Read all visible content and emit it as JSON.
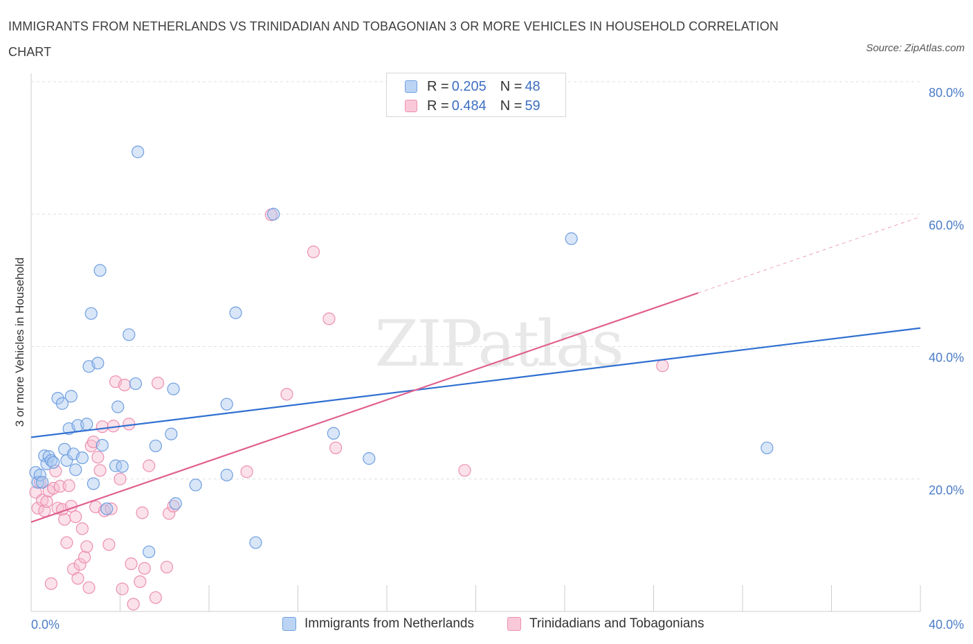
{
  "title": "IMMIGRANTS FROM NETHERLANDS VS TRINIDADIAN AND TOBAGONIAN 3 OR MORE VEHICLES IN HOUSEHOLD CORRELATION CHART",
  "source": "Source: ZipAtlas.com",
  "watermark": "ZIPatlas",
  "colors": {
    "blue_fill": "#a9c7ef",
    "blue_stroke": "#6f9ee0",
    "blue_line": "#2f6fd1",
    "pink_fill": "#f6bcd0",
    "pink_stroke": "#ec8fb0",
    "pink_line": "#e0608f",
    "tick_text": "#4a7cc7",
    "grid": "#dddddd"
  },
  "legend": {
    "items": [
      {
        "r_label": "R =",
        "r_value": "0.205",
        "n_label": "N =",
        "n_value": "48"
      },
      {
        "r_label": "R =",
        "r_value": "0.484",
        "n_label": "N =",
        "n_value": "59"
      }
    ]
  },
  "chart_data": {
    "type": "scatter",
    "title": "IMMIGRANTS FROM NETHERLANDS VS TRINIDADIAN AND TOBAGONIAN 3 OR MORE VEHICLES IN HOUSEHOLD CORRELATION CHART",
    "xlabel": "",
    "ylabel": "3 or more Vehicles in Household",
    "xlim": [
      0,
      40
    ],
    "ylim": [
      0,
      80
    ],
    "x_tick_labels": [
      "0.0%",
      "40.0%"
    ],
    "y_ticks": [
      20,
      40,
      60,
      80
    ],
    "y_tick_labels": [
      "20.0%",
      "40.0%",
      "60.0%",
      "80.0%"
    ],
    "grid": true,
    "legend_position": "bottom",
    "series": [
      {
        "name": "Immigrants from Netherlands",
        "R": 0.205,
        "N": 48,
        "trend": {
          "x": [
            0,
            40
          ],
          "y": [
            26.3,
            42.8
          ],
          "dashed_from": null
        },
        "points": [
          [
            0.2,
            21.0
          ],
          [
            0.3,
            19.5
          ],
          [
            0.4,
            20.6
          ],
          [
            0.5,
            19.5
          ],
          [
            0.6,
            23.5
          ],
          [
            0.7,
            22.3
          ],
          [
            0.8,
            23.4
          ],
          [
            0.9,
            22.8
          ],
          [
            1.0,
            22.5
          ],
          [
            1.2,
            32.2
          ],
          [
            1.4,
            31.4
          ],
          [
            1.5,
            24.5
          ],
          [
            1.6,
            22.8
          ],
          [
            1.8,
            32.5
          ],
          [
            1.9,
            23.8
          ],
          [
            1.7,
            27.6
          ],
          [
            2.1,
            28.1
          ],
          [
            2.0,
            21.4
          ],
          [
            2.3,
            23.2
          ],
          [
            2.5,
            28.3
          ],
          [
            2.6,
            37.0
          ],
          [
            2.7,
            45.0
          ],
          [
            2.8,
            19.3
          ],
          [
            3.0,
            37.5
          ],
          [
            3.1,
            51.5
          ],
          [
            3.2,
            25.1
          ],
          [
            3.4,
            15.5
          ],
          [
            3.8,
            22.0
          ],
          [
            3.9,
            30.9
          ],
          [
            4.1,
            21.9
          ],
          [
            4.4,
            41.8
          ],
          [
            4.7,
            34.4
          ],
          [
            4.8,
            69.4
          ],
          [
            5.3,
            9.0
          ],
          [
            5.6,
            25.0
          ],
          [
            6.3,
            26.8
          ],
          [
            6.4,
            33.6
          ],
          [
            6.5,
            16.3
          ],
          [
            7.4,
            19.1
          ],
          [
            8.8,
            31.3
          ],
          [
            8.8,
            20.6
          ],
          [
            9.2,
            45.1
          ],
          [
            10.1,
            10.4
          ],
          [
            10.9,
            60.0
          ],
          [
            13.6,
            26.9
          ],
          [
            15.2,
            23.1
          ],
          [
            24.3,
            56.3
          ],
          [
            33.1,
            24.7
          ]
        ]
      },
      {
        "name": "Trinidadians and Tobagonians",
        "R": 0.484,
        "N": 59,
        "trend": {
          "x": [
            0,
            30
          ],
          "y": [
            13.5,
            48.1
          ],
          "dashed_to": {
            "x": 40,
            "y": 59.6
          }
        },
        "points": [
          [
            0.2,
            18.0
          ],
          [
            0.3,
            15.6
          ],
          [
            0.4,
            19.5
          ],
          [
            0.5,
            16.8
          ],
          [
            0.6,
            15.2
          ],
          [
            0.7,
            16.6
          ],
          [
            0.8,
            18.2
          ],
          [
            0.9,
            4.2
          ],
          [
            1.0,
            18.6
          ],
          [
            1.1,
            21.2
          ],
          [
            1.2,
            15.6
          ],
          [
            1.3,
            18.9
          ],
          [
            1.4,
            15.4
          ],
          [
            1.5,
            13.9
          ],
          [
            1.6,
            10.4
          ],
          [
            1.7,
            19.0
          ],
          [
            1.8,
            15.9
          ],
          [
            1.9,
            6.4
          ],
          [
            2.0,
            14.3
          ],
          [
            2.1,
            5.0
          ],
          [
            2.2,
            7.1
          ],
          [
            2.3,
            12.5
          ],
          [
            2.4,
            8.2
          ],
          [
            2.5,
            9.8
          ],
          [
            2.6,
            3.6
          ],
          [
            2.7,
            25.0
          ],
          [
            2.8,
            25.6
          ],
          [
            2.9,
            15.8
          ],
          [
            3.0,
            23.3
          ],
          [
            3.1,
            21.3
          ],
          [
            3.2,
            27.9
          ],
          [
            3.3,
            15.2
          ],
          [
            3.5,
            10.1
          ],
          [
            3.6,
            15.5
          ],
          [
            3.7,
            28.0
          ],
          [
            3.8,
            34.7
          ],
          [
            4.0,
            20.0
          ],
          [
            4.1,
            3.4
          ],
          [
            4.2,
            34.2
          ],
          [
            4.4,
            28.3
          ],
          [
            4.5,
            7.2
          ],
          [
            4.6,
            1.1
          ],
          [
            4.9,
            4.5
          ],
          [
            5.0,
            14.9
          ],
          [
            5.1,
            6.5
          ],
          [
            5.3,
            22.0
          ],
          [
            5.6,
            2.1
          ],
          [
            5.7,
            34.5
          ],
          [
            6.1,
            6.7
          ],
          [
            6.2,
            14.8
          ],
          [
            6.4,
            15.9
          ],
          [
            9.7,
            21.1
          ],
          [
            10.8,
            59.9
          ],
          [
            11.5,
            32.8
          ],
          [
            12.7,
            54.3
          ],
          [
            13.4,
            44.2
          ],
          [
            13.7,
            24.7
          ],
          [
            19.5,
            21.3
          ],
          [
            28.4,
            37.1
          ]
        ]
      }
    ]
  },
  "bottom_legend": {
    "items": [
      "Immigrants from Netherlands",
      "Trinidadians and Tobagonians"
    ]
  }
}
